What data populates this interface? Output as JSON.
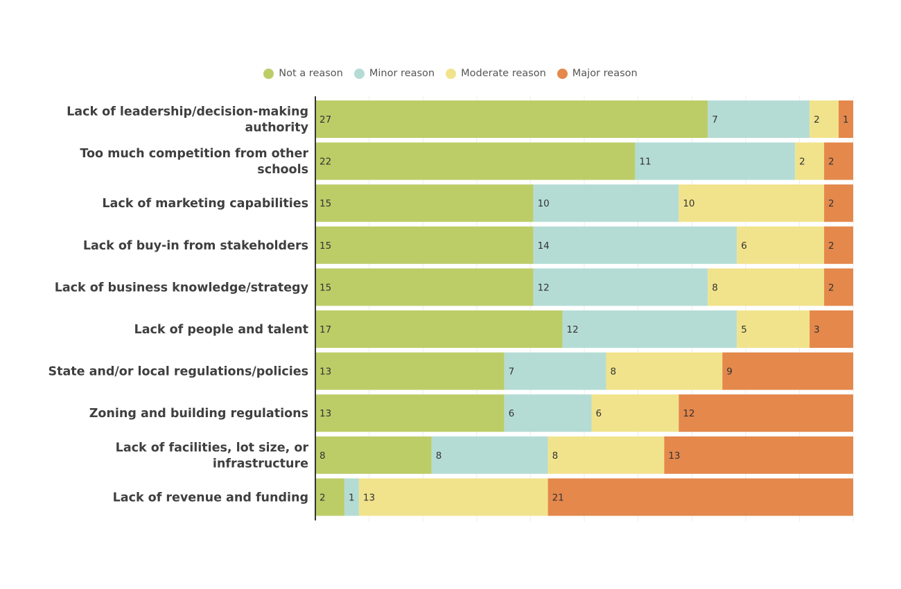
{
  "chart_data": {
    "type": "bar",
    "orientation": "horizontal",
    "stacked": true,
    "normalized": true,
    "title": "",
    "xlabel": "",
    "ylabel": "",
    "xlim": [
      0,
      1
    ],
    "grid": true,
    "legend_position": "top-center",
    "categories": [
      [
        "Lack of leadership/decision-making",
        "authority"
      ],
      [
        "Too much competition from other",
        "schools"
      ],
      [
        "Lack of marketing capabilities"
      ],
      [
        "Lack of buy-in from stakeholders"
      ],
      [
        "Lack of business knowledge/strategy"
      ],
      [
        "Lack of people and talent"
      ],
      [
        "State and/or local regulations/policies"
      ],
      [
        "Zoning and building regulations"
      ],
      [
        "Lack of facilities, lot size, or",
        "infrastructure"
      ],
      [
        "Lack of revenue and funding"
      ]
    ],
    "series": [
      {
        "name": "Not a reason",
        "color": "#bccd67",
        "values": [
          27,
          22,
          15,
          15,
          15,
          17,
          13,
          13,
          8,
          2
        ]
      },
      {
        "name": "Minor reason",
        "color": "#b4dcd5",
        "values": [
          7,
          11,
          10,
          14,
          12,
          12,
          7,
          6,
          8,
          1
        ]
      },
      {
        "name": "Moderate reason",
        "color": "#f1e38c",
        "values": [
          2,
          2,
          10,
          6,
          8,
          5,
          8,
          6,
          8,
          13
        ]
      },
      {
        "name": "Major reason",
        "color": "#e4884c",
        "values": [
          1,
          2,
          2,
          2,
          2,
          3,
          9,
          12,
          13,
          21
        ]
      }
    ]
  }
}
